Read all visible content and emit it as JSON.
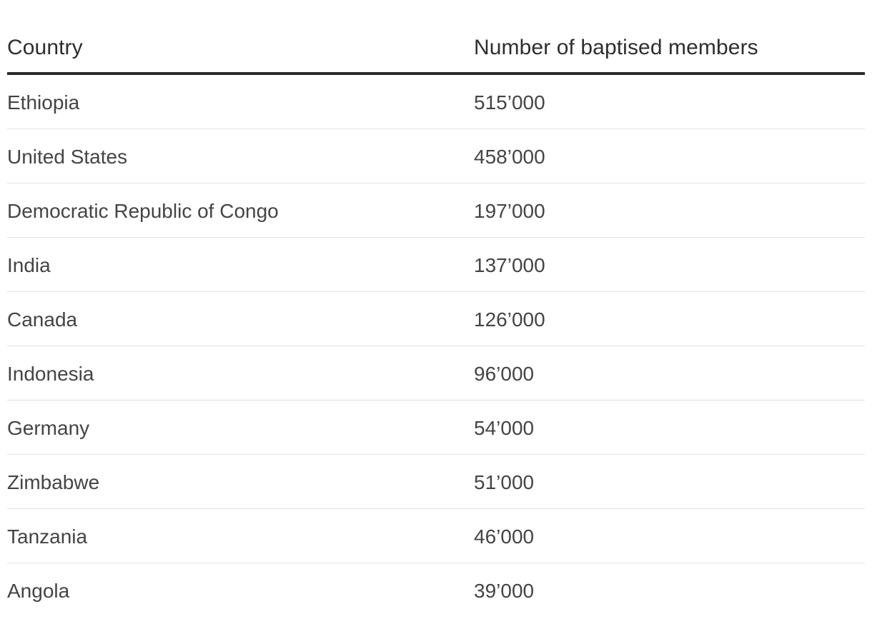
{
  "table": {
    "headers": {
      "country": "Country",
      "members": "Number of baptised members"
    },
    "rows": [
      {
        "country": "Ethiopia",
        "members": "515’000"
      },
      {
        "country": "United States",
        "members": "458’000"
      },
      {
        "country": "Democratic Republic of Congo",
        "members": "197’000"
      },
      {
        "country": "India",
        "members": "137’000"
      },
      {
        "country": "Canada",
        "members": "126’000"
      },
      {
        "country": "Indonesia",
        "members": "96’000"
      },
      {
        "country": "Germany",
        "members": "54’000"
      },
      {
        "country": "Zimbabwe",
        "members": "51’000"
      },
      {
        "country": "Tanzania",
        "members": "46’000"
      },
      {
        "country": "Angola",
        "members": "39’000"
      }
    ]
  }
}
